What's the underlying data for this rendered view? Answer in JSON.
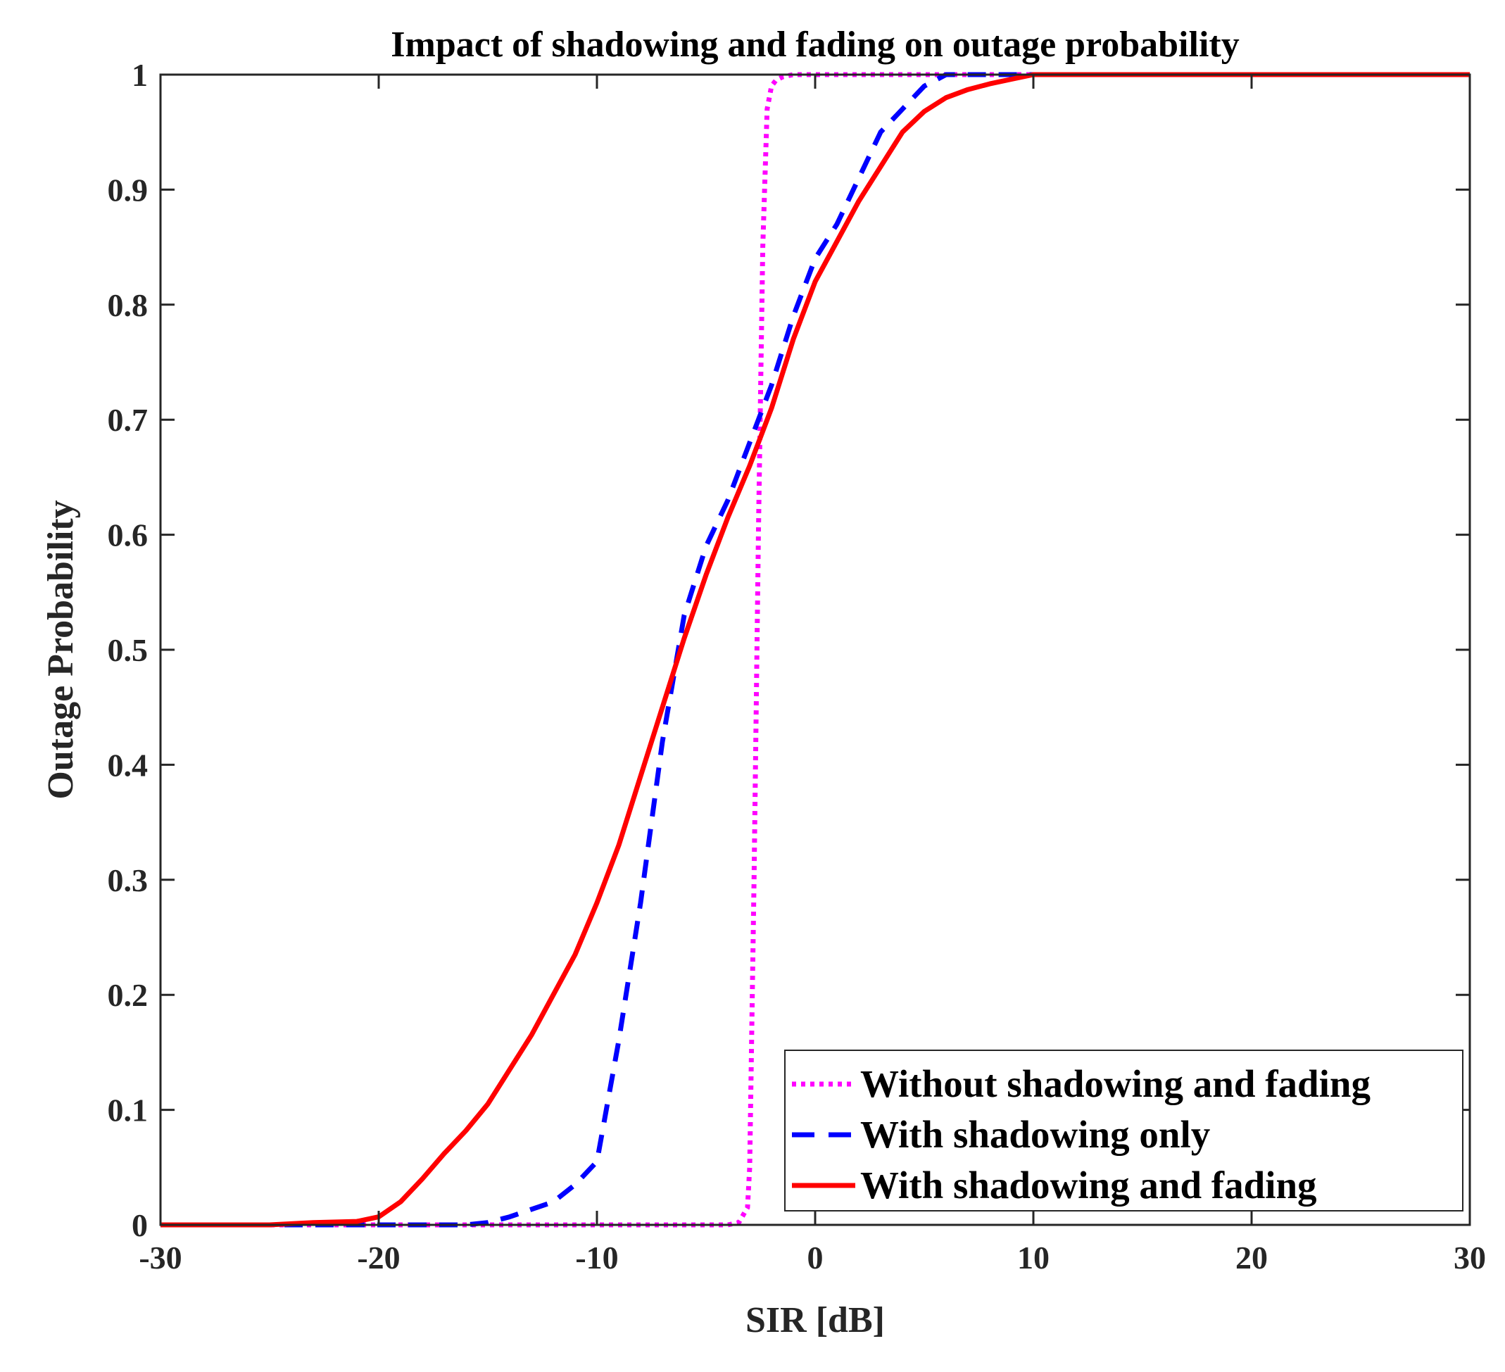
{
  "chart_data": {
    "type": "line",
    "title": "Impact of shadowing and fading on outage probability",
    "xlabel": "SIR [dB]",
    "ylabel": "Outage Probability",
    "xlim": [
      -30,
      30
    ],
    "ylim": [
      0,
      1
    ],
    "xticks": [
      -30,
      -20,
      -10,
      0,
      10,
      20,
      30
    ],
    "xtick_labels": [
      "-30",
      "-20",
      "-10",
      "0",
      "10",
      "20",
      "30"
    ],
    "yticks": [
      0,
      0.1,
      0.2,
      0.3,
      0.4,
      0.5,
      0.6,
      0.7,
      0.8,
      0.9,
      1
    ],
    "ytick_labels": [
      "0",
      "0.1",
      "0.2",
      "0.3",
      "0.4",
      "0.5",
      "0.6",
      "0.7",
      "0.8",
      "0.9",
      "1"
    ],
    "grid": false,
    "legend_position": "bottom-right",
    "series": [
      {
        "name": "Without shadowing and fading",
        "color": "#ff00ff",
        "style": "dotted",
        "x": [
          -30,
          -25,
          -20,
          -15,
          -10,
          -5,
          -4,
          -3.5,
          -3.1,
          -3.0,
          -2.8,
          -2.6,
          -2.4,
          -2.2,
          -2.0,
          -1.8,
          -1.5,
          -1.0,
          0,
          5,
          10,
          20,
          30
        ],
        "y": [
          0,
          0,
          0,
          0,
          0,
          0,
          0,
          0.002,
          0.015,
          0.05,
          0.3,
          0.6,
          0.85,
          0.97,
          0.99,
          0.995,
          0.998,
          1,
          1,
          1,
          1,
          1,
          1
        ]
      },
      {
        "name": "With shadowing only",
        "color": "#0000ff",
        "style": "dashed",
        "x": [
          -30,
          -25,
          -20,
          -16,
          -15,
          -14,
          -12,
          -11,
          -10,
          -9,
          -8,
          -7,
          -6,
          -5,
          -4,
          -3,
          -2,
          -1,
          0,
          1,
          2,
          3,
          4,
          5,
          6,
          7,
          10,
          20,
          30
        ],
        "y": [
          0,
          0,
          0,
          0,
          0.002,
          0.007,
          0.02,
          0.035,
          0.055,
          0.16,
          0.28,
          0.42,
          0.53,
          0.59,
          0.63,
          0.68,
          0.73,
          0.79,
          0.84,
          0.87,
          0.91,
          0.95,
          0.97,
          0.99,
          1,
          1,
          1,
          1,
          1
        ]
      },
      {
        "name": "With shadowing and fading",
        "color": "#ff0000",
        "style": "solid",
        "x": [
          -30,
          -25,
          -23,
          -21,
          -20,
          -19,
          -18,
          -17,
          -16,
          -15,
          -14,
          -13,
          -12,
          -11,
          -10,
          -9,
          -8,
          -7,
          -6,
          -5,
          -4,
          -3,
          -2,
          -1,
          0,
          1,
          2,
          3,
          4,
          5,
          6,
          7,
          8,
          9,
          10,
          15,
          20,
          25,
          30
        ],
        "y": [
          0,
          0,
          0.002,
          0.003,
          0.007,
          0.02,
          0.04,
          0.062,
          0.082,
          0.105,
          0.135,
          0.165,
          0.2,
          0.235,
          0.28,
          0.33,
          0.39,
          0.45,
          0.51,
          0.565,
          0.615,
          0.66,
          0.71,
          0.77,
          0.82,
          0.855,
          0.89,
          0.92,
          0.95,
          0.968,
          0.98,
          0.987,
          0.992,
          0.996,
          1,
          1,
          1,
          1,
          1
        ]
      }
    ]
  }
}
